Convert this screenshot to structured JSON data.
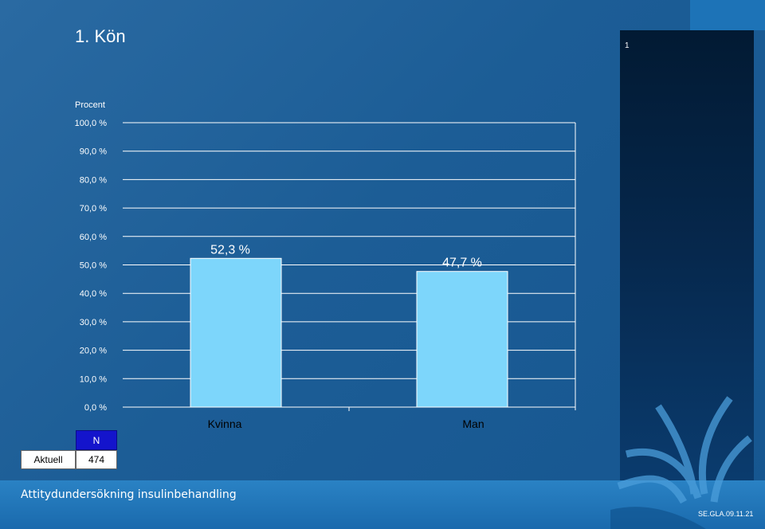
{
  "slide": {
    "title": "1. Kön",
    "tiny_mark": "1",
    "footer_text": "Attitydundersökning insulinbehandling",
    "footer_code": "SE.GLA.09.11.21"
  },
  "colors": {
    "background": "#1c5d96",
    "bar": "#7dd6fb",
    "grid": "#ffffff",
    "side_panel": "#021a33",
    "n_header": "#1414cc"
  },
  "n_table": {
    "header": "N",
    "row_label": "Aktuell",
    "value": "474"
  },
  "chart_data": {
    "type": "bar",
    "ylabel": "Procent",
    "categories": [
      "Kvinna",
      "Man"
    ],
    "values": [
      52.3,
      47.7
    ],
    "value_labels": [
      "52,3 %",
      "47,7 %"
    ],
    "ylim": [
      0,
      100
    ],
    "yticks": [
      "0,0 %",
      "10,0 %",
      "20,0 %",
      "30,0 %",
      "40,0 %",
      "50,0 %",
      "60,0 %",
      "70,0 %",
      "80,0 %",
      "90,0 %",
      "100,0 %"
    ],
    "grid": true
  }
}
